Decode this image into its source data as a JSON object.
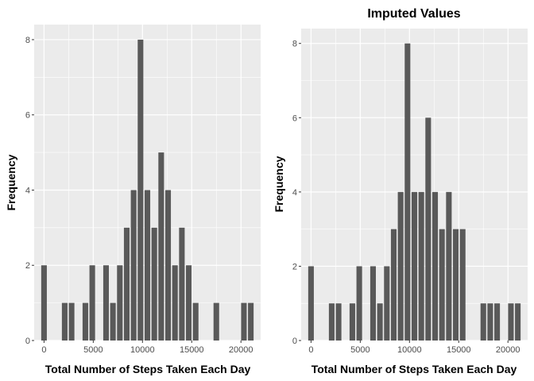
{
  "colors": {
    "panel_background": "#ebebeb",
    "grid_major": "#ffffff",
    "bar_fill": "#595959",
    "tick_text": "#4d4d4d"
  },
  "chart_data": [
    {
      "type": "bar",
      "title": "",
      "xlabel": "Total Number of Steps Taken Each Day",
      "ylabel": "Frequency",
      "xlim": [
        -1000,
        22000
      ],
      "ylim": [
        0,
        8.4
      ],
      "xticks": [
        0,
        5000,
        10000,
        15000,
        20000
      ],
      "yticks": [
        0,
        2,
        4,
        6,
        8
      ],
      "grid": true,
      "bin_width": 700,
      "bin_centers": [
        0,
        2100,
        2800,
        4200,
        4900,
        6300,
        7000,
        7700,
        8400,
        9100,
        9800,
        10500,
        11200,
        11900,
        12600,
        13300,
        14000,
        14700,
        15400,
        17500,
        20300,
        21000
      ],
      "values": [
        2,
        1,
        1,
        1,
        2,
        2,
        1,
        2,
        3,
        4,
        8,
        4,
        3,
        5,
        4,
        2,
        3,
        2,
        1,
        1,
        1,
        1
      ]
    },
    {
      "type": "bar",
      "title": "Imputed Values",
      "xlabel": "Total Number of Steps Taken Each Day",
      "ylabel": "Frequency",
      "xlim": [
        -1000,
        22000
      ],
      "ylim": [
        0,
        8.4
      ],
      "xticks": [
        0,
        5000,
        10000,
        15000,
        20000
      ],
      "yticks": [
        0,
        2,
        4,
        6,
        8
      ],
      "grid": true,
      "bin_width": 700,
      "bin_centers": [
        0,
        2100,
        2800,
        4200,
        4900,
        6300,
        7000,
        7700,
        8400,
        9100,
        9800,
        10500,
        11200,
        11900,
        12600,
        13300,
        14000,
        14700,
        15400,
        17500,
        18200,
        18900,
        20300,
        21000
      ],
      "values": [
        2,
        1,
        1,
        1,
        2,
        2,
        1,
        2,
        3,
        4,
        8,
        4,
        4,
        6,
        4,
        3,
        4,
        3,
        3,
        1,
        1,
        1,
        1,
        1
      ]
    }
  ]
}
